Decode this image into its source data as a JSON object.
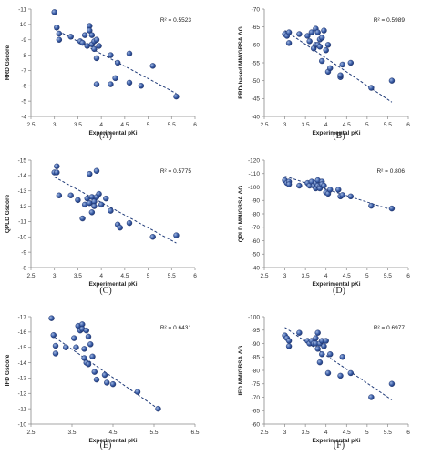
{
  "chart_data": [
    {
      "type": "scatter",
      "caption": "(A)",
      "xlabel": "Experimental pKi",
      "ylabel": "RRD Gscore",
      "r2_text": "R² = 0.5523",
      "xlim": [
        2.5,
        6
      ],
      "xticks": [
        2.5,
        3,
        3.5,
        4,
        4.5,
        5,
        5.5,
        6
      ],
      "xtick_labels": [
        "2.5",
        "3",
        "3.5",
        "4",
        "4.5",
        "5",
        "5.5",
        "6"
      ],
      "ylim": [
        -11,
        -4
      ],
      "yticks": [
        -11,
        -10,
        -9,
        -8,
        -7,
        -6,
        -5,
        -4
      ],
      "ytick_labels": [
        "-11",
        "-10",
        "-9",
        "-8",
        "-7",
        "-6",
        "-5",
        "-4"
      ],
      "inverted_y": true,
      "trend": [
        [
          3.0,
          -9.7
        ],
        [
          5.6,
          -5.5
        ]
      ],
      "points": [
        [
          3.0,
          -10.8
        ],
        [
          3.05,
          -9.8
        ],
        [
          3.1,
          -9.4
        ],
        [
          3.1,
          -9.0
        ],
        [
          3.35,
          -9.2
        ],
        [
          3.55,
          -8.9
        ],
        [
          3.6,
          -8.8
        ],
        [
          3.65,
          -9.3
        ],
        [
          3.7,
          -8.6
        ],
        [
          3.75,
          -9.9
        ],
        [
          3.75,
          -9.6
        ],
        [
          3.8,
          -9.3
        ],
        [
          3.8,
          -8.7
        ],
        [
          3.85,
          -8.9
        ],
        [
          3.85,
          -8.4
        ],
        [
          3.9,
          -9.0
        ],
        [
          3.9,
          -7.8
        ],
        [
          3.95,
          -8.6
        ],
        [
          3.9,
          -6.1
        ],
        [
          4.2,
          -8.0
        ],
        [
          4.2,
          -6.1
        ],
        [
          4.3,
          -6.5
        ],
        [
          4.35,
          -7.5
        ],
        [
          4.6,
          -6.2
        ],
        [
          4.6,
          -8.1
        ],
        [
          4.85,
          -6.0
        ],
        [
          5.1,
          -7.3
        ],
        [
          5.6,
          -5.3
        ]
      ]
    },
    {
      "type": "scatter",
      "caption": "(B)",
      "xlabel": "Experimental pKi",
      "ylabel": "RRD-based MM/GBSA ΔG",
      "r2_text": "R² = 0.5989",
      "xlim": [
        2.5,
        6
      ],
      "xticks": [
        2.5,
        3,
        3.5,
        4,
        4.5,
        5,
        5.5,
        6
      ],
      "xtick_labels": [
        "2.5",
        "3",
        "3.5",
        "4",
        "4.5",
        "5",
        "5.5",
        "6"
      ],
      "ylim": [
        -70,
        -40
      ],
      "yticks": [
        -70,
        -65,
        -60,
        -55,
        -50,
        -45,
        -40
      ],
      "ytick_labels": [
        "-70",
        "-65",
        "-60",
        "-55",
        "-50",
        "-45",
        "-40"
      ],
      "inverted_y": true,
      "trend": [
        [
          3.0,
          -64.0
        ],
        [
          5.6,
          -44.0
        ]
      ],
      "points": [
        [
          3.0,
          -63.0
        ],
        [
          3.05,
          -62.5
        ],
        [
          3.1,
          -63.5
        ],
        [
          3.1,
          -60.5
        ],
        [
          3.35,
          -63.0
        ],
        [
          3.55,
          -62.5
        ],
        [
          3.6,
          -61.0
        ],
        [
          3.65,
          -63.5
        ],
        [
          3.7,
          -59.0
        ],
        [
          3.75,
          -60.0
        ],
        [
          3.75,
          -64.5
        ],
        [
          3.8,
          -63.5
        ],
        [
          3.8,
          -60.0
        ],
        [
          3.85,
          -61.5
        ],
        [
          3.85,
          -59.5
        ],
        [
          3.9,
          -62.0
        ],
        [
          3.9,
          -55.5
        ],
        [
          3.95,
          -64.0
        ],
        [
          4.0,
          -58.5
        ],
        [
          4.05,
          -52.5
        ],
        [
          4.05,
          -60.0
        ],
        [
          4.1,
          -53.5
        ],
        [
          4.35,
          -51.0
        ],
        [
          4.35,
          -51.5
        ],
        [
          4.4,
          -54.5
        ],
        [
          4.6,
          -55.0
        ],
        [
          5.1,
          -48.0
        ],
        [
          5.6,
          -50.0
        ]
      ]
    },
    {
      "type": "scatter",
      "caption": "(C)",
      "xlabel": "Experimental pKi",
      "ylabel": "QPLD Gscore",
      "r2_text": "R² = 0.5775",
      "xlim": [
        2.5,
        6
      ],
      "xticks": [
        2.5,
        3,
        3.5,
        4,
        4.5,
        5,
        5.5,
        6
      ],
      "xtick_labels": [
        "2.5",
        "3",
        "3.5",
        "4",
        "4.5",
        "5",
        "5.5",
        "6"
      ],
      "ylim": [
        -15,
        -8
      ],
      "yticks": [
        -15,
        -14,
        -13,
        -12,
        -11,
        -10,
        -9,
        -8
      ],
      "ytick_labels": [
        "-15",
        "-14",
        "-13",
        "-12",
        "-11",
        "-10",
        "-9",
        "-8"
      ],
      "inverted_y": true,
      "trend": [
        [
          3.0,
          -13.9
        ],
        [
          5.6,
          -9.6
        ]
      ],
      "points": [
        [
          3.0,
          -14.2
        ],
        [
          3.05,
          -14.6
        ],
        [
          3.05,
          -14.2
        ],
        [
          3.1,
          -12.7
        ],
        [
          3.35,
          -12.7
        ],
        [
          3.5,
          -12.4
        ],
        [
          3.6,
          -11.2
        ],
        [
          3.65,
          -12.1
        ],
        [
          3.7,
          -12.5
        ],
        [
          3.75,
          -12.2
        ],
        [
          3.75,
          -14.1
        ],
        [
          3.8,
          -12.6
        ],
        [
          3.8,
          -11.6
        ],
        [
          3.85,
          -12.3
        ],
        [
          3.85,
          -12.0
        ],
        [
          3.9,
          -14.3
        ],
        [
          3.9,
          -12.6
        ],
        [
          3.95,
          -12.8
        ],
        [
          4.0,
          -12.1
        ],
        [
          4.1,
          -12.5
        ],
        [
          4.2,
          -11.7
        ],
        [
          4.35,
          -10.8
        ],
        [
          4.4,
          -10.6
        ],
        [
          4.6,
          -10.9
        ],
        [
          5.1,
          -10.0
        ],
        [
          5.6,
          -10.1
        ]
      ]
    },
    {
      "type": "scatter",
      "caption": "(D)",
      "xlabel": "Experimental pKi",
      "ylabel": "QPLD MM/GBSA ΔG",
      "r2_text": "R² = 0.806",
      "xlim": [
        2.5,
        6
      ],
      "xticks": [
        2.5,
        3,
        3.5,
        4,
        4.5,
        5,
        5.5,
        6
      ],
      "xtick_labels": [
        "2.5",
        "3",
        "3.5",
        "4",
        "4.5",
        "5",
        "5.5",
        "6"
      ],
      "ylim": [
        -120,
        -40
      ],
      "yticks": [
        -120,
        -110,
        -100,
        -90,
        -80,
        -70,
        -60,
        -50,
        -40
      ],
      "ytick_labels": [
        "-120",
        "-110",
        "-100",
        "-90",
        "-80",
        "-70",
        "-60",
        "-50",
        "-40"
      ],
      "inverted_y": true,
      "trend": [
        [
          3.0,
          -108.0
        ],
        [
          5.6,
          -83.0
        ]
      ],
      "points": [
        [
          3.0,
          -105.0
        ],
        [
          3.05,
          -103.0
        ],
        [
          3.1,
          -104.0
        ],
        [
          3.1,
          -102.0
        ],
        [
          3.35,
          -101.0
        ],
        [
          3.55,
          -103.0
        ],
        [
          3.6,
          -101.0
        ],
        [
          3.65,
          -104.0
        ],
        [
          3.7,
          -101.0
        ],
        [
          3.75,
          -103.0
        ],
        [
          3.75,
          -99.0
        ],
        [
          3.8,
          -101.0
        ],
        [
          3.8,
          -105.0
        ],
        [
          3.85,
          -100.0
        ],
        [
          3.85,
          -99.0
        ],
        [
          3.9,
          -104.0
        ],
        [
          3.9,
          -102.0
        ],
        [
          3.95,
          -101.0
        ],
        [
          4.0,
          -96.0
        ],
        [
          4.05,
          -95.0
        ],
        [
          4.1,
          -98.0
        ],
        [
          4.3,
          -98.0
        ],
        [
          4.35,
          -93.0
        ],
        [
          4.4,
          -94.0
        ],
        [
          4.6,
          -93.0
        ],
        [
          5.1,
          -86.0
        ],
        [
          5.6,
          -84.0
        ]
      ]
    },
    {
      "type": "scatter",
      "caption": "(E)",
      "xlabel": "Experimental pKi",
      "ylabel": "IFD Gscore",
      "r2_text": "R² = 0.6431",
      "xlim": [
        2.5,
        6.5
      ],
      "xticks": [
        2.5,
        3.5,
        4.5,
        5.5,
        6.5
      ],
      "xtick_labels": [
        "2.5",
        "3.5",
        "4.5",
        "5.5",
        "6.5"
      ],
      "ylim": [
        -17,
        -10
      ],
      "yticks": [
        -17,
        -16,
        -15,
        -14,
        -13,
        -12,
        -11,
        -10
      ],
      "ytick_labels": [
        "-17",
        "-16",
        "-15",
        "-14",
        "-13",
        "-12",
        "-11",
        "-10"
      ],
      "inverted_y": true,
      "trend": [
        [
          3.0,
          -15.8
        ],
        [
          5.6,
          -11.0
        ]
      ],
      "points": [
        [
          3.0,
          -16.9
        ],
        [
          3.05,
          -15.8
        ],
        [
          3.1,
          -15.1
        ],
        [
          3.1,
          -14.6
        ],
        [
          3.35,
          -15.0
        ],
        [
          3.55,
          -15.6
        ],
        [
          3.6,
          -15.0
        ],
        [
          3.65,
          -16.4
        ],
        [
          3.7,
          -16.1
        ],
        [
          3.75,
          -16.5
        ],
        [
          3.75,
          -16.2
        ],
        [
          3.8,
          -14.9
        ],
        [
          3.8,
          -14.3
        ],
        [
          3.85,
          -16.1
        ],
        [
          3.85,
          -14.0
        ],
        [
          3.9,
          -15.7
        ],
        [
          3.9,
          -13.9
        ],
        [
          3.95,
          -15.2
        ],
        [
          4.0,
          -14.4
        ],
        [
          4.05,
          -13.4
        ],
        [
          4.1,
          -12.9
        ],
        [
          4.3,
          -13.2
        ],
        [
          4.35,
          -12.7
        ],
        [
          4.5,
          -12.6
        ],
        [
          5.1,
          -12.1
        ],
        [
          5.6,
          -11.0
        ]
      ]
    },
    {
      "type": "scatter",
      "caption": "(F)",
      "xlabel": "Experimental pKi",
      "ylabel": "IFD MM/GBSA ΔG",
      "r2_text": "R² = 0.6977",
      "xlim": [
        2.5,
        6
      ],
      "xticks": [
        2.5,
        3,
        3.5,
        4,
        4.5,
        5,
        5.5,
        6
      ],
      "xtick_labels": [
        "2.5",
        "3",
        "3.5",
        "4",
        "4.5",
        "5",
        "5.5",
        "6"
      ],
      "ylim": [
        -100,
        -60
      ],
      "yticks": [
        -100,
        -95,
        -90,
        -85,
        -80,
        -75,
        -70,
        -65,
        -60
      ],
      "ytick_labels": [
        "-100",
        "-95",
        "-90",
        "-85",
        "-80",
        "-75",
        "-70",
        "-65",
        "-60"
      ],
      "inverted_y": true,
      "trend": [
        [
          3.0,
          -96.0
        ],
        [
          5.6,
          -69.0
        ]
      ],
      "points": [
        [
          3.0,
          -93.0
        ],
        [
          3.05,
          -92.0
        ],
        [
          3.1,
          -91.0
        ],
        [
          3.1,
          -89.0
        ],
        [
          3.35,
          -94.0
        ],
        [
          3.55,
          -91.0
        ],
        [
          3.6,
          -90.0
        ],
        [
          3.65,
          -91.0
        ],
        [
          3.7,
          -90.0
        ],
        [
          3.75,
          -92.0
        ],
        [
          3.75,
          -90.0
        ],
        [
          3.8,
          -94.0
        ],
        [
          3.8,
          -88.0
        ],
        [
          3.85,
          -90.0
        ],
        [
          3.85,
          -83.0
        ],
        [
          3.9,
          -91.0
        ],
        [
          3.9,
          -86.0
        ],
        [
          3.95,
          -89.0
        ],
        [
          4.0,
          -91.0
        ],
        [
          4.05,
          -79.0
        ],
        [
          4.1,
          -86.0
        ],
        [
          4.35,
          -78.0
        ],
        [
          4.4,
          -85.0
        ],
        [
          4.6,
          -79.0
        ],
        [
          5.1,
          -70.0
        ],
        [
          5.6,
          -75.0
        ]
      ]
    }
  ]
}
